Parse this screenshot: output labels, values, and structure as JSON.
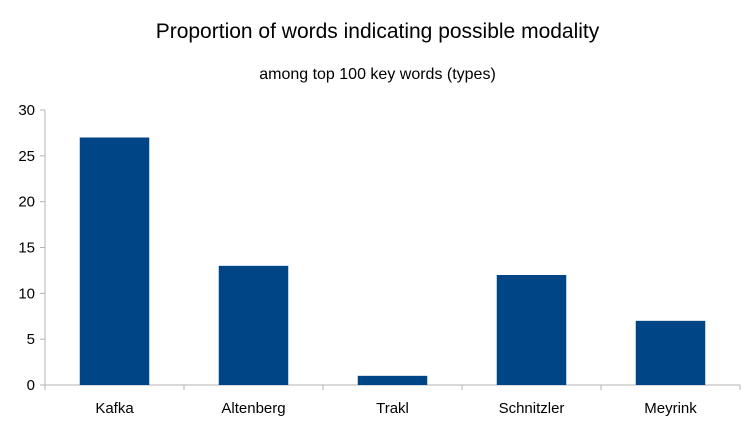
{
  "chart_data": {
    "type": "bar",
    "title": "Proportion of words indicating possible modality",
    "subtitle": "among top 100 key words (types)",
    "xlabel": "",
    "ylabel": "",
    "categories": [
      "Kafka",
      "Altenberg",
      "Trakl",
      "Schnitzler",
      "Meyrink"
    ],
    "values": [
      27,
      13,
      1,
      12,
      7
    ],
    "ylim": [
      0,
      30
    ],
    "yticks": [
      0,
      5,
      10,
      15,
      20,
      25,
      30
    ],
    "grid": false,
    "legend": "none",
    "bar_color": "#004586",
    "axis_color": "#b3b3b3"
  }
}
